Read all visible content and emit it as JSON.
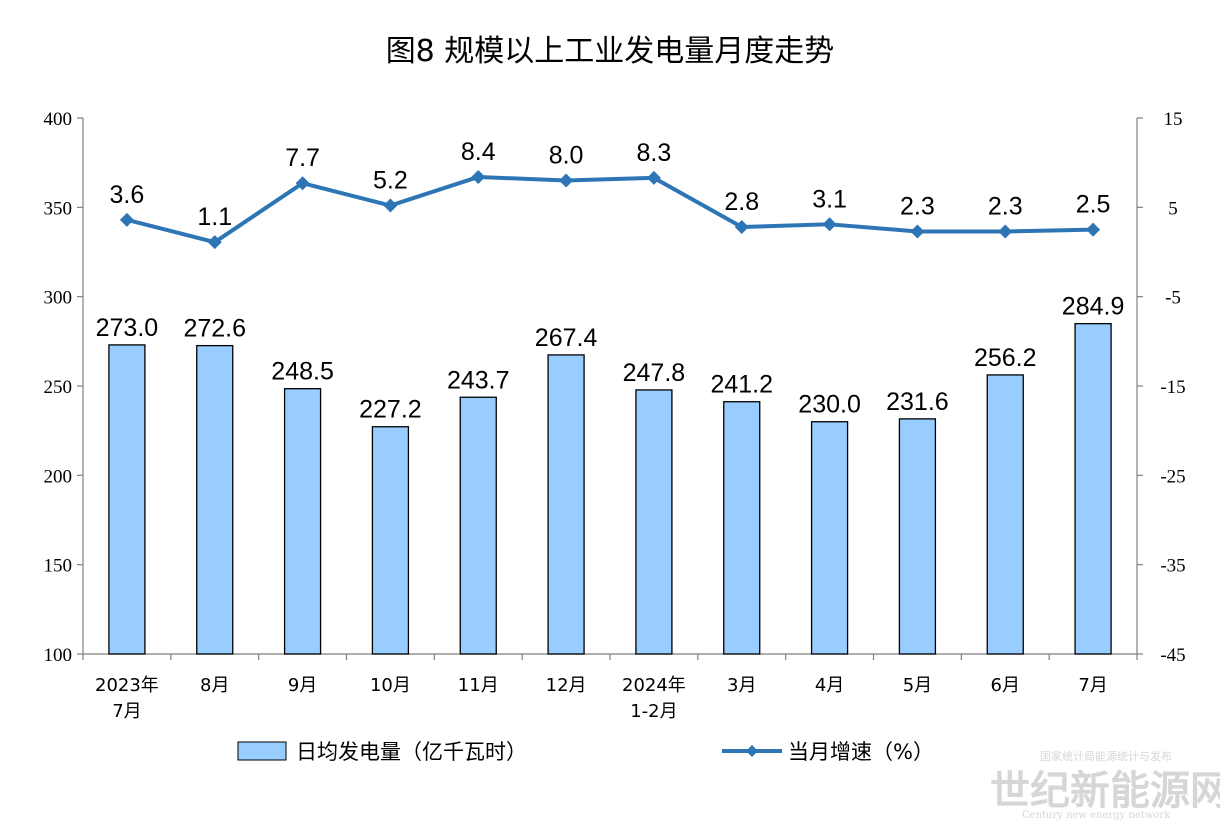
{
  "title": "图8  规模以上工业发电量月度走势",
  "legend": {
    "bar_label": "日均发电量（亿千瓦时）",
    "line_label": "当月增速（%）"
  },
  "watermark": {
    "main": "世纪新能源网",
    "sub": "Century new energy network",
    "top": "国家统计局能源统计与发布"
  },
  "colors": {
    "bar_fill": "#99CCFF",
    "bar_stroke": "#000000",
    "line": "#2E75B6"
  },
  "chart_data": {
    "type": "bar",
    "categories": [
      [
        "2023年",
        "7月"
      ],
      [
        "8月"
      ],
      [
        "9月"
      ],
      [
        "10月"
      ],
      [
        "11月"
      ],
      [
        "12月"
      ],
      [
        "2024年",
        "1-2月"
      ],
      [
        "3月"
      ],
      [
        "4月"
      ],
      [
        "5月"
      ],
      [
        "6月"
      ],
      [
        "7月"
      ]
    ],
    "series": [
      {
        "name": "日均发电量（亿千瓦时）",
        "type": "bar",
        "axis": "left",
        "values": [
          273.0,
          272.6,
          248.5,
          227.2,
          243.7,
          267.4,
          247.8,
          241.2,
          230.0,
          231.6,
          256.2,
          284.9
        ]
      },
      {
        "name": "当月增速（%）",
        "type": "line",
        "axis": "right",
        "values": [
          3.6,
          1.1,
          7.7,
          5.2,
          8.4,
          8.0,
          8.3,
          2.8,
          3.1,
          2.3,
          2.3,
          2.5
        ]
      }
    ],
    "y_left": {
      "min": 100,
      "max": 400,
      "ticks": [
        100,
        150,
        200,
        250,
        300,
        350,
        400
      ]
    },
    "y_right": {
      "min": -45,
      "max": 15,
      "ticks": [
        -45,
        -35,
        -25,
        -15,
        -5,
        5,
        15
      ]
    },
    "grid": false,
    "legend_position": "bottom"
  }
}
